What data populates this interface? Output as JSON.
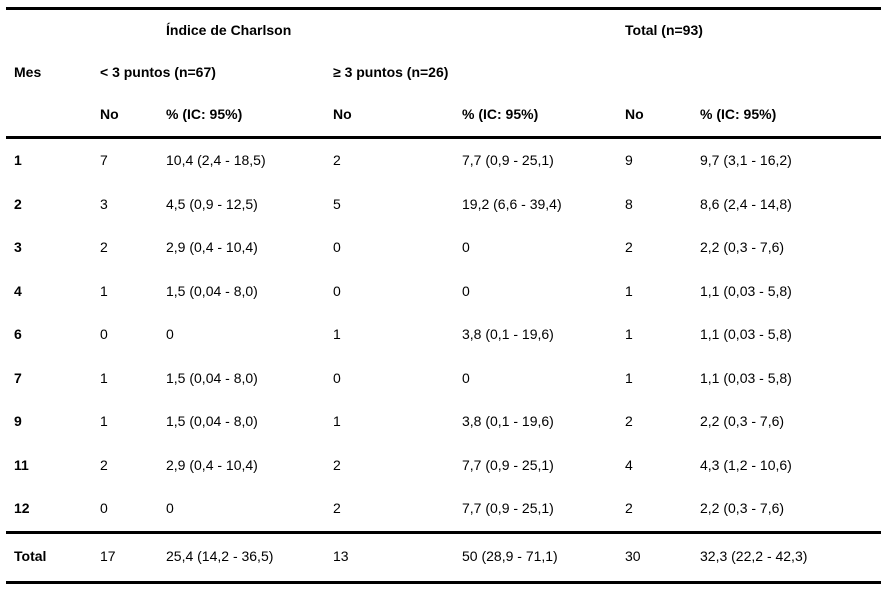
{
  "table": {
    "header": {
      "group_title": "Índice de Charlson",
      "total_title": "Total (n=93)",
      "mes_label": "Mes",
      "group1_label": "< 3 puntos (n=67)",
      "group2_label": "≥ 3 puntos (n=26)",
      "no_label": "No",
      "pct_label": "% (IC: 95%)"
    },
    "rows": [
      {
        "mes": "1",
        "g1_no": "7",
        "g1_pct": "10,4 (2,4 - 18,5)",
        "g2_no": "2",
        "g2_pct": "7,7 (0,9 - 25,1)",
        "t_no": "9",
        "t_pct": "9,7 (3,1 - 16,2)"
      },
      {
        "mes": "2",
        "g1_no": "3",
        "g1_pct": "4,5 (0,9 - 12,5)",
        "g2_no": "5",
        "g2_pct": "19,2 (6,6 - 39,4)",
        "t_no": "8",
        "t_pct": "8,6 (2,4 - 14,8)"
      },
      {
        "mes": "3",
        "g1_no": "2",
        "g1_pct": "2,9 (0,4 - 10,4)",
        "g2_no": "0",
        "g2_pct": "0",
        "t_no": "2",
        "t_pct": "2,2 (0,3 - 7,6)"
      },
      {
        "mes": "4",
        "g1_no": "1",
        "g1_pct": "1,5 (0,04 - 8,0)",
        "g2_no": "0",
        "g2_pct": "0",
        "t_no": "1",
        "t_pct": "1,1 (0,03 - 5,8)"
      },
      {
        "mes": "6",
        "g1_no": "0",
        "g1_pct": "0",
        "g2_no": "1",
        "g2_pct": "3,8 (0,1 - 19,6)",
        "t_no": "1",
        "t_pct": "1,1 (0,03 - 5,8)"
      },
      {
        "mes": "7",
        "g1_no": "1",
        "g1_pct": "1,5 (0,04 - 8,0)",
        "g2_no": "0",
        "g2_pct": "0",
        "t_no": "1",
        "t_pct": "1,1 (0,03 - 5,8)"
      },
      {
        "mes": "9",
        "g1_no": "1",
        "g1_pct": "1,5 (0,04 - 8,0)",
        "g2_no": "1",
        "g2_pct": "3,8 (0,1 - 19,6)",
        "t_no": "2",
        "t_pct": "2,2 (0,3 - 7,6)"
      },
      {
        "mes": "11",
        "g1_no": "2",
        "g1_pct": "2,9 (0,4 - 10,4)",
        "g2_no": "2",
        "g2_pct": "7,7 (0,9 - 25,1)",
        "t_no": "4",
        "t_pct": "4,3 (1,2 - 10,6)"
      },
      {
        "mes": "12",
        "g1_no": "0",
        "g1_pct": "0",
        "g2_no": "2",
        "g2_pct": "7,7 (0,9 - 25,1)",
        "t_no": "2",
        "t_pct": "2,2 (0,3 - 7,6)"
      }
    ],
    "total_row": {
      "mes": "Total",
      "g1_no": "17",
      "g1_pct": "25,4 (14,2 - 36,5)",
      "g2_no": "13",
      "g2_pct": "50 (28,9 - 71,1)",
      "t_no": "30",
      "t_pct": "32,3 (22,2 - 42,3)"
    }
  }
}
